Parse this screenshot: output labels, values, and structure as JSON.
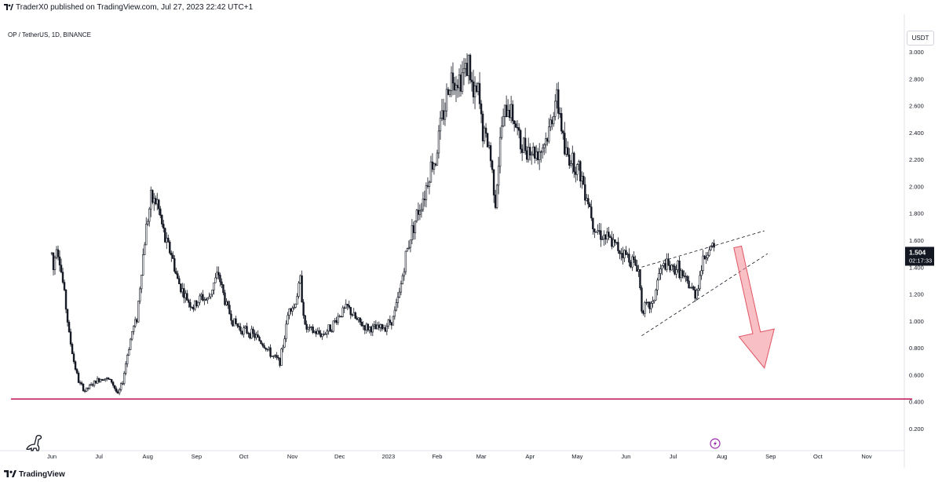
{
  "header": {
    "published": "TraderX0 published on TradingView.com, Jul 27, 2023 22:42 UTC+1"
  },
  "symbol": {
    "label": "OP / TetherUS, 1D, BINANCE"
  },
  "currency": "USDT",
  "last_price": {
    "value": "1.504",
    "countdown": "02:17:33"
  },
  "footer": {
    "brand": "TradingView"
  },
  "icons": {
    "watermark": "dinosaur-icon",
    "event": "lightning-icon",
    "logo": "tradingview-logo-icon"
  },
  "colors": {
    "candle": "#131722",
    "support_line": "#c2185b",
    "arrow": "#f28b96",
    "event_badge": "#9c27b0",
    "price_tag": "#131722"
  },
  "chart_data": {
    "type": "candlestick",
    "x_start_date": "2022-06-01",
    "x_end_date": "2023-11-30",
    "ylim": [
      0.06,
      3.25
    ],
    "yticks": [
      0.2,
      0.4,
      0.6,
      0.8,
      1.0,
      1.2,
      1.4,
      1.6,
      1.8,
      2.0,
      2.2,
      2.4,
      2.6,
      2.8,
      3.0
    ],
    "ytick_labels": [
      "0.200",
      "0.400",
      "0.600",
      "0.800",
      "1.000",
      "1.200",
      "1.400",
      "1.600",
      "1.800",
      "2.000",
      "2.200",
      "2.400",
      "2.600",
      "2.800",
      "3.000"
    ],
    "xticks": [
      {
        "date": "2022-06-01",
        "label": "Jun"
      },
      {
        "date": "2022-07-01",
        "label": "Jul"
      },
      {
        "date": "2022-08-01",
        "label": "Aug"
      },
      {
        "date": "2022-09-01",
        "label": "Sep"
      },
      {
        "date": "2022-10-01",
        "label": "Oct"
      },
      {
        "date": "2022-11-01",
        "label": "Nov"
      },
      {
        "date": "2022-12-01",
        "label": "Dec"
      },
      {
        "date": "2023-01-01",
        "label": "2023"
      },
      {
        "date": "2023-02-01",
        "label": "Feb"
      },
      {
        "date": "2023-03-01",
        "label": "Mar"
      },
      {
        "date": "2023-04-01",
        "label": "Apr"
      },
      {
        "date": "2023-05-01",
        "label": "May"
      },
      {
        "date": "2023-06-01",
        "label": "Jun"
      },
      {
        "date": "2023-07-01",
        "label": "Jul"
      },
      {
        "date": "2023-08-01",
        "label": "Aug"
      },
      {
        "date": "2023-09-01",
        "label": "Sep"
      },
      {
        "date": "2023-10-01",
        "label": "Oct"
      },
      {
        "date": "2023-11-01",
        "label": "Nov"
      }
    ],
    "series": [
      {
        "name": "OP / TetherUS",
        "price_path": [
          [
            "2022-06-01",
            1.5
          ],
          [
            "2022-06-02",
            1.38
          ],
          [
            "2022-06-04",
            1.58
          ],
          [
            "2022-06-06",
            1.45
          ],
          [
            "2022-06-09",
            1.2
          ],
          [
            "2022-06-12",
            0.9
          ],
          [
            "2022-06-15",
            0.7
          ],
          [
            "2022-06-18",
            0.55
          ],
          [
            "2022-06-22",
            0.48
          ],
          [
            "2022-06-26",
            0.52
          ],
          [
            "2022-06-30",
            0.56
          ],
          [
            "2022-07-04",
            0.58
          ],
          [
            "2022-07-09",
            0.55
          ],
          [
            "2022-07-13",
            0.45
          ],
          [
            "2022-07-16",
            0.55
          ],
          [
            "2022-07-19",
            0.75
          ],
          [
            "2022-07-22",
            0.92
          ],
          [
            "2022-07-25",
            1.02
          ],
          [
            "2022-07-28",
            1.38
          ],
          [
            "2022-07-31",
            1.7
          ],
          [
            "2022-08-03",
            1.9
          ],
          [
            "2022-08-07",
            1.88
          ],
          [
            "2022-08-12",
            1.6
          ],
          [
            "2022-08-16",
            1.5
          ],
          [
            "2022-08-20",
            1.3
          ],
          [
            "2022-08-25",
            1.18
          ],
          [
            "2022-08-30",
            1.1
          ],
          [
            "2022-09-04",
            1.18
          ],
          [
            "2022-09-08",
            1.15
          ],
          [
            "2022-09-12",
            1.28
          ],
          [
            "2022-09-15",
            1.35
          ],
          [
            "2022-09-19",
            1.15
          ],
          [
            "2022-09-24",
            1.0
          ],
          [
            "2022-09-29",
            0.94
          ],
          [
            "2022-10-04",
            0.92
          ],
          [
            "2022-10-09",
            0.88
          ],
          [
            "2022-10-14",
            0.82
          ],
          [
            "2022-10-19",
            0.74
          ],
          [
            "2022-10-24",
            0.7
          ],
          [
            "2022-10-27",
            0.88
          ],
          [
            "2022-10-30",
            1.12
          ],
          [
            "2022-11-02",
            1.1
          ],
          [
            "2022-11-06",
            1.3
          ],
          [
            "2022-11-09",
            0.95
          ],
          [
            "2022-11-14",
            0.92
          ],
          [
            "2022-11-20",
            0.9
          ],
          [
            "2022-11-26",
            0.96
          ],
          [
            "2022-12-01",
            1.05
          ],
          [
            "2022-12-06",
            1.1
          ],
          [
            "2022-12-12",
            1.0
          ],
          [
            "2022-12-18",
            0.95
          ],
          [
            "2022-12-24",
            0.94
          ],
          [
            "2022-12-30",
            0.96
          ],
          [
            "2023-01-04",
            1.02
          ],
          [
            "2023-01-08",
            1.2
          ],
          [
            "2023-01-12",
            1.48
          ],
          [
            "2023-01-16",
            1.68
          ],
          [
            "2023-01-20",
            1.82
          ],
          [
            "2023-01-24",
            1.95
          ],
          [
            "2023-01-28",
            2.15
          ],
          [
            "2023-01-31",
            2.2
          ],
          [
            "2023-02-03",
            2.45
          ],
          [
            "2023-02-06",
            2.6
          ],
          [
            "2023-02-09",
            2.8
          ],
          [
            "2023-02-12",
            2.82
          ],
          [
            "2023-02-15",
            2.8
          ],
          [
            "2023-02-18",
            2.85
          ],
          [
            "2023-02-21",
            2.92
          ],
          [
            "2023-02-24",
            2.65
          ],
          [
            "2023-02-27",
            2.7
          ],
          [
            "2023-03-02",
            2.4
          ],
          [
            "2023-03-06",
            2.3
          ],
          [
            "2023-03-10",
            1.9
          ],
          [
            "2023-03-14",
            2.45
          ],
          [
            "2023-03-18",
            2.6
          ],
          [
            "2023-03-22",
            2.5
          ],
          [
            "2023-03-26",
            2.3
          ],
          [
            "2023-03-30",
            2.3
          ],
          [
            "2023-04-04",
            2.25
          ],
          [
            "2023-04-08",
            2.28
          ],
          [
            "2023-04-13",
            2.4
          ],
          [
            "2023-04-17",
            2.65
          ],
          [
            "2023-04-20",
            2.55
          ],
          [
            "2023-04-23",
            2.25
          ],
          [
            "2023-04-28",
            2.2
          ],
          [
            "2023-05-03",
            2.1
          ],
          [
            "2023-05-08",
            1.9
          ],
          [
            "2023-05-12",
            1.7
          ],
          [
            "2023-05-16",
            1.65
          ],
          [
            "2023-05-21",
            1.6
          ],
          [
            "2023-05-26",
            1.55
          ],
          [
            "2023-05-31",
            1.5
          ],
          [
            "2023-06-05",
            1.45
          ],
          [
            "2023-06-09",
            1.38
          ],
          [
            "2023-06-11",
            1.1
          ],
          [
            "2023-06-14",
            1.1
          ],
          [
            "2023-06-18",
            1.12
          ],
          [
            "2023-06-22",
            1.35
          ],
          [
            "2023-06-26",
            1.42
          ],
          [
            "2023-06-30",
            1.38
          ],
          [
            "2023-07-04",
            1.4
          ],
          [
            "2023-07-08",
            1.3
          ],
          [
            "2023-07-12",
            1.25
          ],
          [
            "2023-07-15",
            1.2
          ],
          [
            "2023-07-17",
            1.28
          ],
          [
            "2023-07-20",
            1.45
          ],
          [
            "2023-07-24",
            1.55
          ],
          [
            "2023-07-27",
            1.52
          ]
        ],
        "color": "#131722"
      },
      {
        "name": "Support",
        "type": "line",
        "x": [
          "2022-05-06",
          "2023-11-30"
        ],
        "y": [
          0.42,
          0.42
        ],
        "color": "#c2185b"
      },
      {
        "name": "Upper trendline",
        "type": "line",
        "style": "dashed",
        "x": [
          "2023-06-11",
          "2023-08-28"
        ],
        "y": [
          1.4,
          1.67
        ],
        "color": "#131722"
      },
      {
        "name": "Lower trendline",
        "type": "line",
        "style": "dashed",
        "x": [
          "2023-06-11",
          "2023-08-30"
        ],
        "y": [
          0.89,
          1.5
        ],
        "color": "#131722"
      },
      {
        "name": "Projection arrow",
        "type": "arrow",
        "x": [
          "2023-08-11",
          "2023-08-28"
        ],
        "y": [
          1.55,
          0.65
        ],
        "color": "#f28b96"
      }
    ],
    "grid": false,
    "legend": "none"
  }
}
